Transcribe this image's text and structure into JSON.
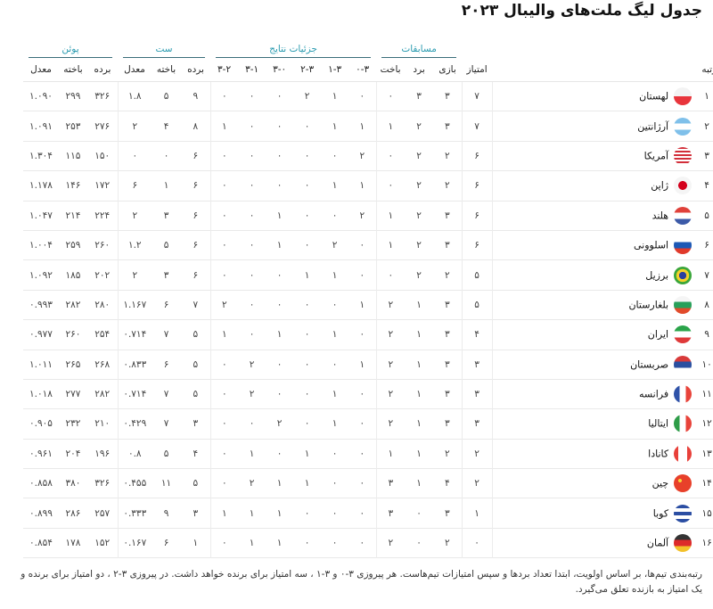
{
  "title": "جدول لیگ ملت‌های والیبال ۲۰۲۳",
  "header": {
    "groups": {
      "matches": "مسابقات",
      "results": "جزئیات نتایج",
      "sets": "ست",
      "points": "پوئن"
    },
    "columns": {
      "rank": "رتبه",
      "score": "امتیاز",
      "played": "بازی",
      "won": "برد",
      "lost": "باخت",
      "r30": "۰-۳",
      "r31": "۱-۳",
      "r32": "۲-۳",
      "r03": "۳-۰",
      "r13": "۳-۱",
      "r23": "۳-۲",
      "sets_won": "برده",
      "sets_lost": "باخته",
      "sets_ratio": "معدل",
      "pts_won": "برده",
      "pts_lost": "باخته",
      "pts_ratio": "معدل"
    }
  },
  "rows": [
    {
      "rank": "۱",
      "team": "لهستان",
      "flag": "poland",
      "score": "۷",
      "played": "۳",
      "won": "۳",
      "lost": "۰",
      "r30": "۰",
      "r31": "۱",
      "r32": "۲",
      "r03": "۰",
      "r13": "۰",
      "r23": "۰",
      "sets_won": "۹",
      "sets_lost": "۵",
      "sets_ratio": "۱.۸",
      "pts_won": "۳۲۶",
      "pts_lost": "۲۹۹",
      "pts_ratio": "۱.۰۹۰"
    },
    {
      "rank": "۲",
      "team": "آرژانتین",
      "flag": "argentina",
      "score": "۷",
      "played": "۳",
      "won": "۲",
      "lost": "۱",
      "r30": "۱",
      "r31": "۱",
      "r32": "۰",
      "r03": "۰",
      "r13": "۰",
      "r23": "۱",
      "sets_won": "۸",
      "sets_lost": "۴",
      "sets_ratio": "۲",
      "pts_won": "۲۷۶",
      "pts_lost": "۲۵۳",
      "pts_ratio": "۱.۰۹۱"
    },
    {
      "rank": "۳",
      "team": "آمریکا",
      "flag": "usa",
      "score": "۶",
      "played": "۲",
      "won": "۲",
      "lost": "۰",
      "r30": "۲",
      "r31": "۰",
      "r32": "۰",
      "r03": "۰",
      "r13": "۰",
      "r23": "۰",
      "sets_won": "۶",
      "sets_lost": "۰",
      "sets_ratio": "۰",
      "pts_won": "۱۵۰",
      "pts_lost": "۱۱۵",
      "pts_ratio": "۱.۳۰۴"
    },
    {
      "rank": "۴",
      "team": "ژاپن",
      "flag": "japan",
      "score": "۶",
      "played": "۲",
      "won": "۲",
      "lost": "۰",
      "r30": "۱",
      "r31": "۱",
      "r32": "۰",
      "r03": "۰",
      "r13": "۰",
      "r23": "۰",
      "sets_won": "۶",
      "sets_lost": "۱",
      "sets_ratio": "۶",
      "pts_won": "۱۷۲",
      "pts_lost": "۱۴۶",
      "pts_ratio": "۱.۱۷۸"
    },
    {
      "rank": "۵",
      "team": "هلند",
      "flag": "netherlands",
      "score": "۶",
      "played": "۳",
      "won": "۲",
      "lost": "۱",
      "r30": "۲",
      "r31": "۰",
      "r32": "۰",
      "r03": "۱",
      "r13": "۰",
      "r23": "۰",
      "sets_won": "۶",
      "sets_lost": "۳",
      "sets_ratio": "۲",
      "pts_won": "۲۲۴",
      "pts_lost": "۲۱۴",
      "pts_ratio": "۱.۰۴۷"
    },
    {
      "rank": "۶",
      "team": "اسلوونی",
      "flag": "slovenia",
      "score": "۶",
      "played": "۳",
      "won": "۲",
      "lost": "۱",
      "r30": "۰",
      "r31": "۲",
      "r32": "۰",
      "r03": "۱",
      "r13": "۰",
      "r23": "۰",
      "sets_won": "۶",
      "sets_lost": "۵",
      "sets_ratio": "۱.۲",
      "pts_won": "۲۶۰",
      "pts_lost": "۲۵۹",
      "pts_ratio": "۱.۰۰۴"
    },
    {
      "rank": "۷",
      "team": "برزیل",
      "flag": "brazil",
      "score": "۵",
      "played": "۲",
      "won": "۲",
      "lost": "۰",
      "r30": "۰",
      "r31": "۱",
      "r32": "۱",
      "r03": "۰",
      "r13": "۰",
      "r23": "۰",
      "sets_won": "۶",
      "sets_lost": "۳",
      "sets_ratio": "۲",
      "pts_won": "۲۰۲",
      "pts_lost": "۱۸۵",
      "pts_ratio": "۱.۰۹۲"
    },
    {
      "rank": "۸",
      "team": "بلغارستان",
      "flag": "bulgaria",
      "score": "۵",
      "played": "۳",
      "won": "۱",
      "lost": "۲",
      "r30": "۱",
      "r31": "۰",
      "r32": "۰",
      "r03": "۰",
      "r13": "۰",
      "r23": "۲",
      "sets_won": "۷",
      "sets_lost": "۶",
      "sets_ratio": "۱.۱۶۷",
      "pts_won": "۲۸۰",
      "pts_lost": "۲۸۲",
      "pts_ratio": "۰.۹۹۳"
    },
    {
      "rank": "۹",
      "team": "ایران",
      "flag": "iran",
      "score": "۴",
      "played": "۳",
      "won": "۱",
      "lost": "۲",
      "r30": "۰",
      "r31": "۱",
      "r32": "۰",
      "r03": "۱",
      "r13": "۰",
      "r23": "۱",
      "sets_won": "۵",
      "sets_lost": "۷",
      "sets_ratio": "۰.۷۱۴",
      "pts_won": "۲۵۴",
      "pts_lost": "۲۶۰",
      "pts_ratio": "۰.۹۷۷"
    },
    {
      "rank": "۱۰",
      "team": "صربستان",
      "flag": "serbia",
      "score": "۳",
      "played": "۳",
      "won": "۱",
      "lost": "۲",
      "r30": "۱",
      "r31": "۰",
      "r32": "۰",
      "r03": "۰",
      "r13": "۲",
      "r23": "۰",
      "sets_won": "۵",
      "sets_lost": "۶",
      "sets_ratio": "۰.۸۳۳",
      "pts_won": "۲۶۸",
      "pts_lost": "۲۶۵",
      "pts_ratio": "۱.۰۱۱"
    },
    {
      "rank": "۱۱",
      "team": "فرانسه",
      "flag": "france",
      "score": "۳",
      "played": "۳",
      "won": "۱",
      "lost": "۲",
      "r30": "۰",
      "r31": "۱",
      "r32": "۰",
      "r03": "۰",
      "r13": "۲",
      "r23": "۰",
      "sets_won": "۵",
      "sets_lost": "۷",
      "sets_ratio": "۰.۷۱۴",
      "pts_won": "۲۸۲",
      "pts_lost": "۲۷۷",
      "pts_ratio": "۱.۰۱۸"
    },
    {
      "rank": "۱۲",
      "team": "ایتالیا",
      "flag": "italy",
      "score": "۳",
      "played": "۳",
      "won": "۱",
      "lost": "۲",
      "r30": "۰",
      "r31": "۱",
      "r32": "۰",
      "r03": "۲",
      "r13": "۰",
      "r23": "۰",
      "sets_won": "۳",
      "sets_lost": "۷",
      "sets_ratio": "۰.۴۲۹",
      "pts_won": "۲۱۰",
      "pts_lost": "۲۳۲",
      "pts_ratio": "۰.۹۰۵"
    },
    {
      "rank": "۱۳",
      "team": "کانادا",
      "flag": "canada",
      "score": "۲",
      "played": "۲",
      "won": "۱",
      "lost": "۱",
      "r30": "۰",
      "r31": "۰",
      "r32": "۱",
      "r03": "۰",
      "r13": "۱",
      "r23": "۰",
      "sets_won": "۴",
      "sets_lost": "۵",
      "sets_ratio": "۰.۸",
      "pts_won": "۱۹۶",
      "pts_lost": "۲۰۴",
      "pts_ratio": "۰.۹۶۱"
    },
    {
      "rank": "۱۴",
      "team": "چین",
      "flag": "china",
      "score": "۲",
      "played": "۴",
      "won": "۱",
      "lost": "۳",
      "r30": "۰",
      "r31": "۰",
      "r32": "۱",
      "r03": "۱",
      "r13": "۲",
      "r23": "۰",
      "sets_won": "۵",
      "sets_lost": "۱۱",
      "sets_ratio": "۰.۴۵۵",
      "pts_won": "۳۲۶",
      "pts_lost": "۳۸۰",
      "pts_ratio": "۰.۸۵۸"
    },
    {
      "rank": "۱۵",
      "team": "کوبا",
      "flag": "cuba",
      "score": "۱",
      "played": "۳",
      "won": "۰",
      "lost": "۳",
      "r30": "۰",
      "r31": "۰",
      "r32": "۰",
      "r03": "۱",
      "r13": "۱",
      "r23": "۱",
      "sets_won": "۳",
      "sets_lost": "۹",
      "sets_ratio": "۰.۳۳۳",
      "pts_won": "۲۵۷",
      "pts_lost": "۲۸۶",
      "pts_ratio": "۰.۸۹۹"
    },
    {
      "rank": "۱۶",
      "team": "آلمان",
      "flag": "germany",
      "score": "۰",
      "played": "۲",
      "won": "۰",
      "lost": "۲",
      "r30": "۰",
      "r31": "۰",
      "r32": "۰",
      "r03": "۱",
      "r13": "۱",
      "r23": "۰",
      "sets_won": "۱",
      "sets_lost": "۶",
      "sets_ratio": "۰.۱۶۷",
      "pts_won": "۱۵۲",
      "pts_lost": "۱۷۸",
      "pts_ratio": "۰.۸۵۴"
    }
  ],
  "note": "رتبه‌بندی تیم‌ها، بر اساس اولویت، ابتدا تعداد بردها و سپس امتیازات تیم‌هاست. هر پیروزی ۳-۰ و ۳-۱ ، سه امتیاز برای برنده خواهد داشت. در پیروزی ۳-۲ ، دو امتیاز برای برنده و یک امتیاز به بازنده تعلق می‌گیرد.",
  "colors": {
    "group_header_text": "#2a9bb0",
    "group_header_line": "#3b6e7a",
    "row_border": "#e9e9e9"
  }
}
